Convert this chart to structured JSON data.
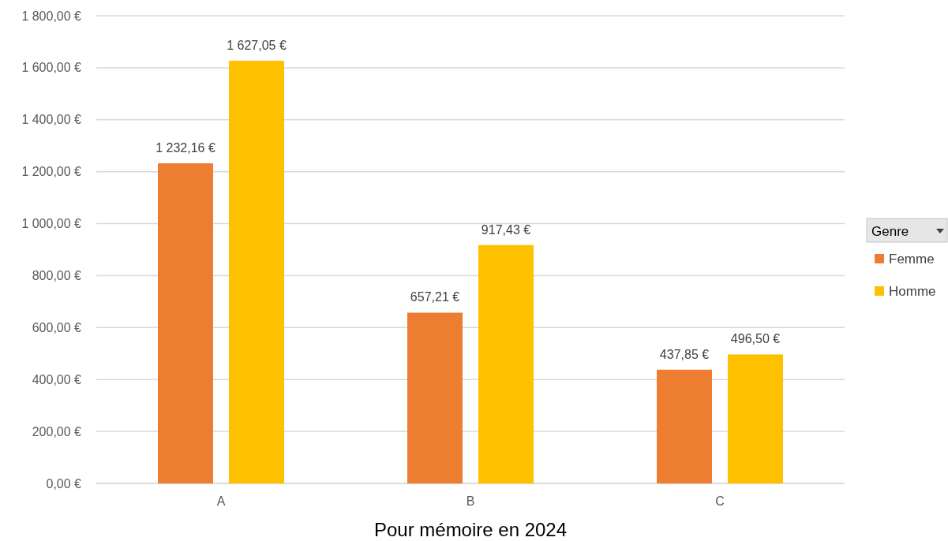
{
  "chart_data": {
    "type": "bar",
    "xlabel": "Pour mémoire en 2024",
    "legend_title": "Genre",
    "categories": [
      "A",
      "B",
      "C"
    ],
    "series": [
      {
        "name": "Femme",
        "color": "#ed7d31",
        "values": [
          1232.16,
          657.21,
          437.85
        ],
        "value_labels": [
          "1 232,16 €",
          "657,21 €",
          "437,85 €"
        ]
      },
      {
        "name": "Homme",
        "color": "#ffc000",
        "values": [
          1627.05,
          917.43,
          496.5
        ],
        "value_labels": [
          "1 627,05 €",
          "917,43 €",
          "496,50 €"
        ]
      }
    ],
    "ylim": [
      0,
      1800
    ],
    "yticks": [
      {
        "value": 0,
        "label": "0,00 €"
      },
      {
        "value": 200,
        "label": "200,00 €"
      },
      {
        "value": 400,
        "label": "400,00 €"
      },
      {
        "value": 600,
        "label": "600,00 €"
      },
      {
        "value": 800,
        "label": "800,00 €"
      },
      {
        "value": 1000,
        "label": "1 000,00 €"
      },
      {
        "value": 1200,
        "label": "1 200,00 €"
      },
      {
        "value": 1400,
        "label": "1 400,00 €"
      },
      {
        "value": 1600,
        "label": "1 600,00 €"
      },
      {
        "value": 1800,
        "label": "1 800,00 €"
      }
    ],
    "grid": "y",
    "legend": "right"
  }
}
